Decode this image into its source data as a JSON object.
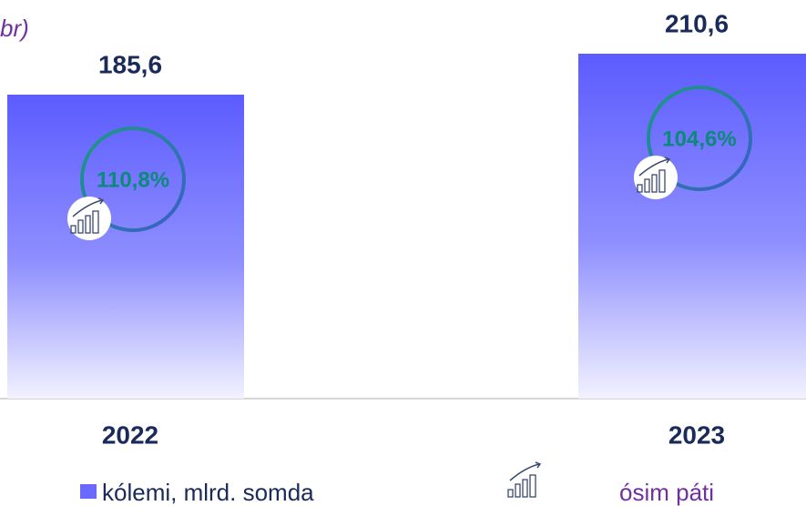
{
  "chart_data": {
    "type": "bar",
    "title": "br)",
    "categories": [
      "2022",
      "2023"
    ],
    "series": [
      {
        "name": "kólemi, mlrd. somda",
        "color": "#6a6aff",
        "values": [
          185.6,
          210.6
        ],
        "value_labels": [
          "185,6",
          "210,6"
        ]
      },
      {
        "name": "ósim páti",
        "color": "#7030a0",
        "values": [
          110.8,
          104.6
        ],
        "value_labels": [
          "110,8%",
          "104,6%"
        ]
      }
    ]
  }
}
